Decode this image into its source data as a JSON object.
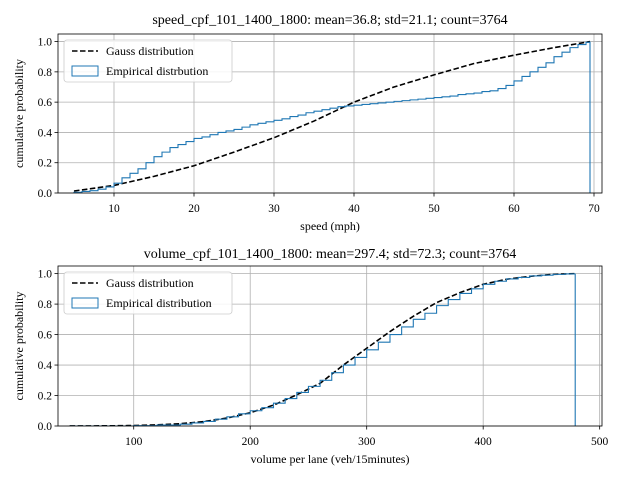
{
  "chart_data": [
    {
      "type": "line",
      "title": "speed_cpf_101_1400_1800: mean=36.8; std=21.1; count=3764",
      "xlabel": "speed (mph)",
      "ylabel": "cumulative probability",
      "xlim": [
        3,
        71
      ],
      "ylim": [
        0,
        1.05
      ],
      "xticks": [
        10,
        20,
        30,
        40,
        50,
        60,
        70
      ],
      "yticks": [
        0.0,
        0.2,
        0.4,
        0.6,
        0.8,
        1.0
      ],
      "grid": true,
      "legend": "top-left",
      "series": [
        {
          "name": "Gauss distribution",
          "kind": "line",
          "style": "dashed",
          "color": "#000000",
          "x": [
            5,
            10,
            15,
            20,
            25,
            30,
            35,
            40,
            45,
            50,
            55,
            60,
            65,
            69.5
          ],
          "y": [
            0.013,
            0.05,
            0.11,
            0.18,
            0.27,
            0.365,
            0.475,
            0.6,
            0.7,
            0.78,
            0.855,
            0.91,
            0.96,
            1.0
          ]
        },
        {
          "name": "Empirical distrbution",
          "kind": "step",
          "color": "#1f77b4",
          "x": [
            5,
            6,
            7,
            8,
            9,
            10,
            11,
            12,
            13,
            14,
            15,
            16,
            17,
            18,
            19,
            20,
            21,
            22,
            23,
            24,
            25,
            26,
            27,
            28,
            29,
            30,
            31,
            32,
            33,
            34,
            35,
            36,
            37,
            38,
            39,
            40,
            41,
            42,
            43,
            44,
            45,
            46,
            47,
            48,
            49,
            50,
            51,
            52,
            53,
            54,
            55,
            56,
            57,
            58,
            59,
            60,
            61,
            62,
            63,
            64,
            65,
            66,
            67,
            68,
            69,
            69.5
          ],
          "y": [
            0.005,
            0.01,
            0.015,
            0.025,
            0.04,
            0.065,
            0.1,
            0.13,
            0.16,
            0.2,
            0.24,
            0.27,
            0.3,
            0.32,
            0.34,
            0.36,
            0.37,
            0.385,
            0.4,
            0.41,
            0.42,
            0.435,
            0.45,
            0.46,
            0.47,
            0.48,
            0.49,
            0.505,
            0.515,
            0.53,
            0.54,
            0.55,
            0.56,
            0.57,
            0.575,
            0.58,
            0.585,
            0.59,
            0.595,
            0.6,
            0.605,
            0.61,
            0.615,
            0.62,
            0.625,
            0.63,
            0.635,
            0.64,
            0.65,
            0.655,
            0.66,
            0.67,
            0.675,
            0.69,
            0.71,
            0.74,
            0.77,
            0.8,
            0.83,
            0.86,
            0.9,
            0.93,
            0.96,
            0.98,
            0.995,
            1.0
          ]
        }
      ]
    },
    {
      "type": "line",
      "title": "volume_cpf_101_1400_1800: mean=297.4; std=72.3; count=3764",
      "xlabel": "volume per lane (veh/15minutes)",
      "ylabel": "cumulative probability",
      "xlim": [
        35,
        502
      ],
      "ylim": [
        0,
        1.05
      ],
      "xticks": [
        100,
        200,
        300,
        400,
        500
      ],
      "yticks": [
        0.0,
        0.2,
        0.4,
        0.6,
        0.8,
        1.0
      ],
      "grid": true,
      "legend": "top-left",
      "series": [
        {
          "name": "Gauss distribution",
          "kind": "line",
          "style": "dashed",
          "color": "#000000",
          "x": [
            45,
            80,
            100,
            120,
            140,
            160,
            180,
            200,
            220,
            240,
            260,
            280,
            300,
            320,
            340,
            360,
            380,
            400,
            420,
            440,
            460,
            479
          ],
          "y": [
            0.0003,
            0.0013,
            0.0032,
            0.0074,
            0.015,
            0.029,
            0.052,
            0.087,
            0.137,
            0.205,
            0.28,
            0.4,
            0.51,
            0.62,
            0.72,
            0.81,
            0.875,
            0.93,
            0.963,
            0.982,
            0.995,
            1.0
          ]
        },
        {
          "name": "Empirical distribution",
          "kind": "step",
          "color": "#1f77b4",
          "x": [
            45,
            100,
            120,
            140,
            150,
            160,
            170,
            180,
            190,
            200,
            210,
            220,
            230,
            240,
            250,
            260,
            270,
            280,
            290,
            300,
            310,
            320,
            330,
            340,
            350,
            360,
            370,
            380,
            390,
            400,
            410,
            420,
            430,
            440,
            450,
            460,
            470,
            479
          ],
          "y": [
            0.0,
            0.002,
            0.006,
            0.012,
            0.02,
            0.03,
            0.045,
            0.06,
            0.08,
            0.1,
            0.12,
            0.15,
            0.18,
            0.22,
            0.26,
            0.3,
            0.35,
            0.4,
            0.45,
            0.5,
            0.55,
            0.6,
            0.65,
            0.7,
            0.74,
            0.79,
            0.83,
            0.87,
            0.9,
            0.93,
            0.95,
            0.965,
            0.975,
            0.985,
            0.99,
            0.995,
            0.998,
            1.0
          ]
        }
      ]
    }
  ]
}
